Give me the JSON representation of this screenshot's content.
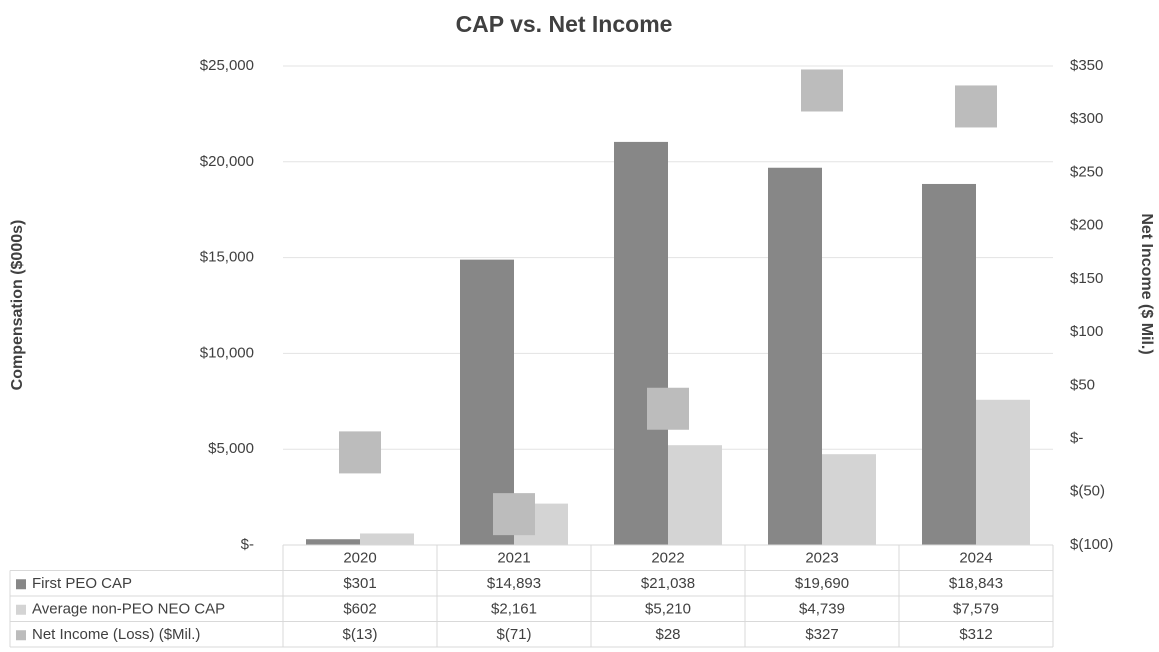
{
  "chart_data": {
    "type": "bar",
    "title": "CAP vs. Net Income",
    "y_label": "Compensation ($000s)",
    "y2_label": "Net Income ($ Mil.)",
    "categories": [
      "2020",
      "2021",
      "2022",
      "2023",
      "2024"
    ],
    "series": [
      {
        "name": "First PEO CAP",
        "color": "#878787",
        "values": [
          301,
          14893,
          21038,
          19690,
          18843
        ],
        "value_labels": [
          "$301",
          "$14,893",
          "$21,038",
          "$19,690",
          "$18,843"
        ]
      },
      {
        "name": "Average non-PEO NEO CAP",
        "color": "#d4d4d4",
        "values": [
          602,
          2161,
          5210,
          4739,
          7579
        ],
        "value_labels": [
          "$602",
          "$2,161",
          "$5,210",
          "$4,739",
          "$7,579"
        ]
      },
      {
        "name": "Net Income (Loss) ($Mil.)",
        "color": "#bcbcbc",
        "axis": "y2",
        "marker": "square",
        "values": [
          -13,
          -71,
          28,
          327,
          312
        ],
        "value_labels": [
          "$(13)",
          "$(71)",
          "$28",
          "$327",
          "$312"
        ]
      }
    ],
    "ylim": [
      0,
      25000
    ],
    "yticks": [
      {
        "value": 0,
        "label": "$-"
      },
      {
        "value": 5000,
        "label": "$5,000"
      },
      {
        "value": 10000,
        "label": "$10,000"
      },
      {
        "value": 15000,
        "label": "$15,000"
      },
      {
        "value": 20000,
        "label": "$20,000"
      },
      {
        "value": 25000,
        "label": "$25,000"
      }
    ],
    "y2lim": [
      -100,
      350
    ],
    "y2ticks": [
      {
        "value": -100,
        "label": "$(100)"
      },
      {
        "value": -50,
        "label": "$(50)"
      },
      {
        "value": 0,
        "label": "$-"
      },
      {
        "value": 50,
        "label": "$50"
      },
      {
        "value": 100,
        "label": "$100"
      },
      {
        "value": 150,
        "label": "$150"
      },
      {
        "value": 200,
        "label": "$200"
      },
      {
        "value": 250,
        "label": "$250"
      },
      {
        "value": 300,
        "label": "$300"
      },
      {
        "value": 350,
        "label": "$350"
      }
    ],
    "grid": true,
    "data_table": true
  }
}
